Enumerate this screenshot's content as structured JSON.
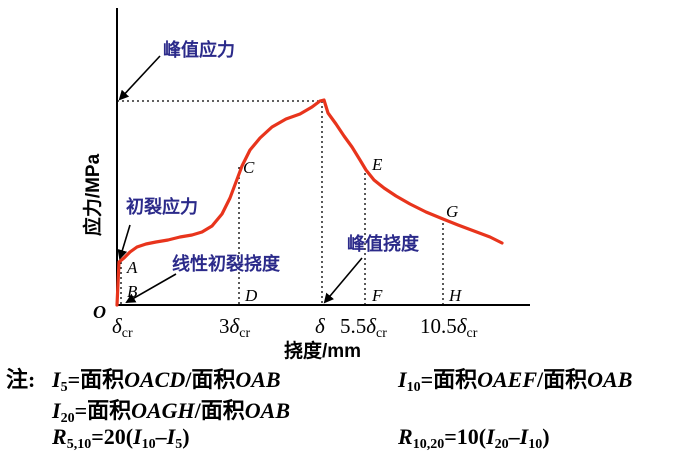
{
  "diagram": {
    "ylabel": "应力/MPa",
    "xlabel": "挠度/mm",
    "origin_label": "O",
    "annotations": {
      "peak_stress": "峰值应力",
      "initial_crack_stress": "初裂应力",
      "linear_initial_crack_deflection": "线性初裂挠度",
      "peak_deflection": "峰值挠度"
    },
    "points": {
      "A": "A",
      "B": "B",
      "C": "C",
      "D": "D",
      "E": "E",
      "F": "F",
      "G": "G",
      "H": "H"
    },
    "x_ticks": [
      {
        "coef": "",
        "sym": "δ",
        "sub": "cr"
      },
      {
        "coef": "3",
        "sym": "δ",
        "sub": "cr"
      },
      {
        "coef": "",
        "sym": "δ",
        "sub": ""
      },
      {
        "coef": "5.5",
        "sym": "δ",
        "sub": "cr"
      },
      {
        "coef": "10.5",
        "sym": "δ",
        "sub": "cr"
      }
    ],
    "curve_color": "#e8341c",
    "annotation_color": "#2b2a8a",
    "axis_color": "#000000"
  },
  "notes": {
    "prefix": "注:",
    "line1_left": {
      "var": "I",
      "sub": "5",
      "rest_a": "=面积",
      "ital_a": "OACD",
      "rest_b": "/面积",
      "ital_b": "OAB"
    },
    "line1_right": {
      "var": "I",
      "sub": "10",
      "rest_a": "=面积",
      "ital_a": "OAEF",
      "rest_b": "/面积",
      "ital_b": "OAB"
    },
    "line2_left": {
      "var": "I",
      "sub": "20",
      "rest_a": "=面积",
      "ital_a": "OAGH",
      "rest_b": "/面积",
      "ital_b": "OAB"
    },
    "line3_left": {
      "var": "R",
      "sub": "5,10",
      "eq": "=20(",
      "v1": "I",
      "s1": "10",
      "minus": "–",
      "v2": "I",
      "s2": "5",
      "close": ")"
    },
    "line3_right": {
      "var": "R",
      "sub": "10,20",
      "eq": "=10(",
      "v1": "I",
      "s1": "20",
      "minus": "–",
      "v2": "I",
      "s2": "10",
      "close": ")"
    }
  }
}
